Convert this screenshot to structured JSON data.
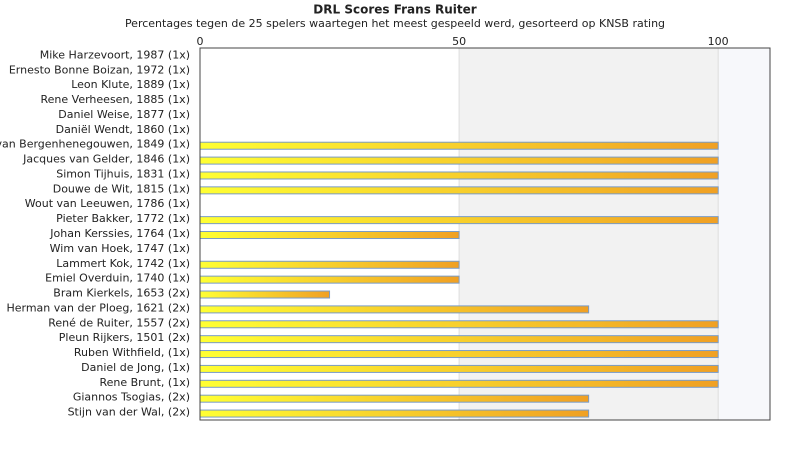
{
  "chart_data": {
    "type": "barh",
    "title": "DRL Scores Frans Ruiter",
    "subtitle": "Percentages tegen de 25 spelers waartegen het meest gespeeld werd, gesorteerd op KNSB rating",
    "categories": [
      "Mike Harzevoort, 1987 (1x)",
      "Ernesto Bonne Boizan, 1972 (1x)",
      "Leon Klute, 1889 (1x)",
      "Rene Verheesen, 1885 (1x)",
      "Daniel Weise, 1877 (1x)",
      "Daniël Wendt, 1860 (1x)",
      "van Bergenhenegouwen, 1849 (1x)",
      "Jacques van Gelder, 1846 (1x)",
      "Simon Tijhuis, 1831 (1x)",
      "Douwe de Wit, 1815 (1x)",
      "Wout van Leeuwen, 1786 (1x)",
      "Pieter Bakker, 1772 (1x)",
      "Johan Kerssies, 1764 (1x)",
      "Wim van Hoek, 1747 (1x)",
      "Lammert Kok, 1742 (1x)",
      "Emiel Overduin, 1740 (1x)",
      "Bram Kierkels, 1653 (2x)",
      "Herman van der Ploeg, 1621 (2x)",
      "René de Ruiter, 1557 (2x)",
      "Pleun Rijkers, 1501 (2x)",
      "Ruben Withfield,  (1x)",
      "Daniel de Jong,  (1x)",
      "Rene Brunt,  (1x)",
      "Giannos Tsogias,  (2x)",
      "Stijn van der Wal,  (2x)"
    ],
    "values": [
      0,
      0,
      0,
      0,
      0,
      0,
      100,
      100,
      100,
      100,
      0,
      100,
      50,
      0,
      50,
      50,
      25,
      75,
      100,
      100,
      100,
      100,
      100,
      75,
      75
    ],
    "gradient": [
      "#ffff33",
      "#f0a024"
    ],
    "border_color": "#7a9cc6",
    "xlim": [
      0,
      110
    ],
    "xticks": [
      0,
      50,
      100
    ],
    "grid": true,
    "band_colors": [
      "#ffffff",
      "#f2f2f2",
      "#f7f8fb"
    ]
  }
}
